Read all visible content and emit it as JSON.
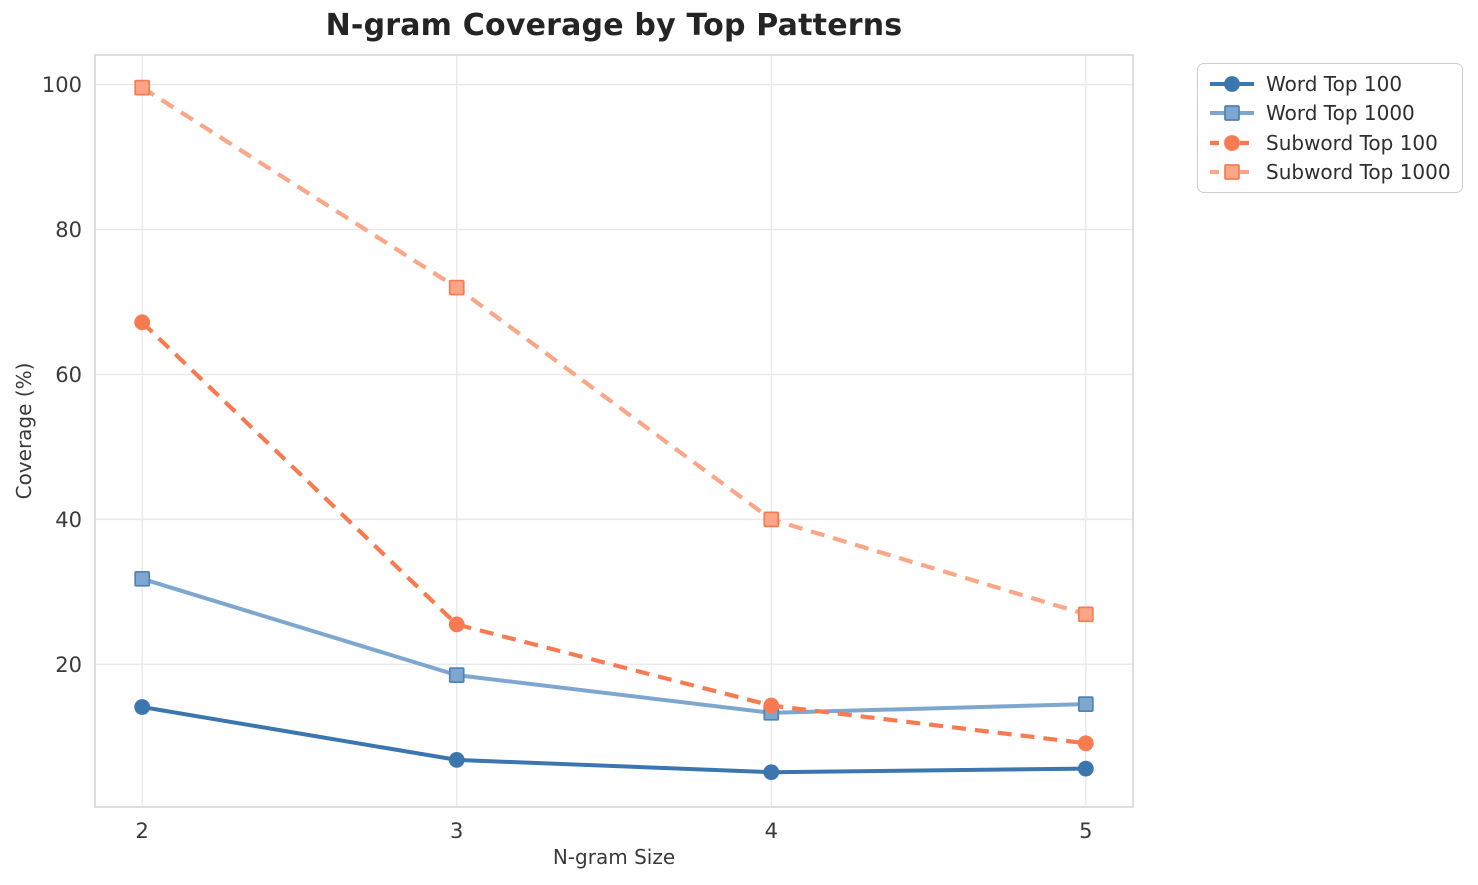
{
  "chart_data": {
    "type": "line",
    "title": "N-gram Coverage by Top Patterns",
    "xlabel": "N-gram Size",
    "ylabel": "Coverage (%)",
    "x": [
      2,
      3,
      4,
      5
    ],
    "xtick_labels": [
      "2",
      "3",
      "4",
      "5"
    ],
    "yticks": [
      100,
      80,
      60,
      40,
      20
    ],
    "xlim": [
      1.85,
      5.15
    ],
    "ylim": [
      0.3,
      104.1
    ],
    "grid": true,
    "legend_position": "outside-upper-right",
    "series": [
      {
        "name": "word-top-100",
        "label": "Word Top 100",
        "color": "#3B76AF",
        "marker": "circle",
        "marker_edge": "#3B76AF",
        "line_style": "solid",
        "values": [
          14.1,
          6.8,
          5.1,
          5.6
        ]
      },
      {
        "name": "word-top-1000",
        "label": "Word Top 1000",
        "color": "#7EA7CF",
        "marker": "square",
        "marker_edge": "#4E83B6",
        "line_style": "solid",
        "values": [
          31.8,
          18.5,
          13.3,
          14.5
        ]
      },
      {
        "name": "subword-top-100",
        "label": "Subword Top 100",
        "color": "#F87A51",
        "marker": "circle",
        "marker_edge": "#F87A51",
        "line_style": "dashed",
        "values": [
          67.2,
          25.5,
          14.3,
          9.1
        ]
      },
      {
        "name": "subword-top-1000",
        "label": "Subword Top 1000",
        "color": "#FBA687",
        "marker": "square",
        "marker_edge": "#F87A51",
        "line_style": "dashed",
        "values": [
          99.6,
          72.0,
          40.0,
          26.9
        ]
      }
    ],
    "colors": {
      "background": "#ffffff",
      "grid": "#e9e9e9",
      "frame": "#d5d5d5",
      "tick_text": "#3a3a3a",
      "title_text": "#242424"
    }
  }
}
